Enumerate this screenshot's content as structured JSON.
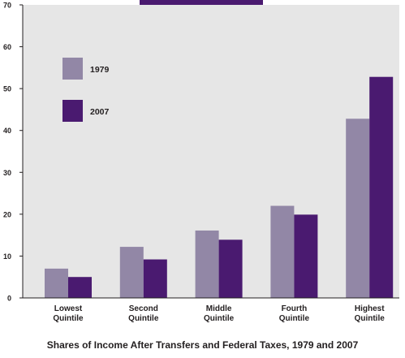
{
  "chart_data": {
    "type": "bar",
    "title": "Shares of Income After Transfers and Federal Taxes, 1979 and 2007",
    "categories": [
      [
        "Lowest",
        "Quintile"
      ],
      [
        "Second",
        "Quintile"
      ],
      [
        "Middle",
        "Quintile"
      ],
      [
        "Fourth",
        "Quintile"
      ],
      [
        "Highest",
        "Quintile"
      ]
    ],
    "series": [
      {
        "name": "1979",
        "color": "#9287a6",
        "values": [
          7,
          12.2,
          16.1,
          22,
          42.8
        ]
      },
      {
        "name": "2007",
        "color": "#4a1a70",
        "values": [
          5,
          9.2,
          13.9,
          19.9,
          52.8
        ]
      }
    ],
    "ylim": [
      0,
      70
    ],
    "yticks": [
      0,
      10,
      20,
      30,
      40,
      50,
      60,
      70
    ],
    "grid": false,
    "legend": "top-left",
    "plot_background": "#e6e6e6",
    "banner_color": "#4a1a70"
  }
}
